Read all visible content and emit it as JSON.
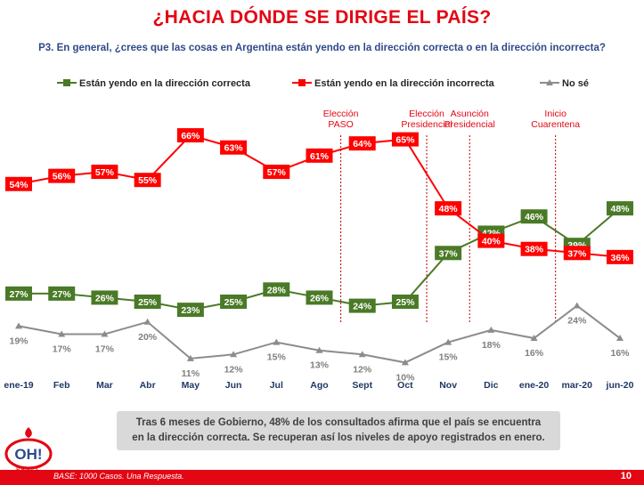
{
  "header": {
    "title": "¿HACIA DÓNDE SE DIRIGE EL PAÍS?",
    "question": "P3. En general, ¿crees que las cosas en Argentina están yendo en la dirección correcta o en la dirección incorrecta?"
  },
  "chart_data": {
    "type": "line",
    "categories": [
      "ene-19",
      "Feb",
      "Mar",
      "Abr",
      "May",
      "Jun",
      "Jul",
      "Ago",
      "Sept",
      "Oct",
      "Nov",
      "Dic",
      "ene-20",
      "mar-20",
      "jun-20"
    ],
    "series": [
      {
        "name": "Están yendo en la dirección correcta",
        "color": "#4a7a27",
        "marker": "square",
        "values": [
          27,
          27,
          26,
          25,
          23,
          25,
          28,
          26,
          24,
          25,
          37,
          42,
          46,
          39,
          48
        ]
      },
      {
        "name": "Están yendo en la dirección incorrecta",
        "color": "#ff0000",
        "marker": "square",
        "values": [
          54,
          56,
          57,
          55,
          66,
          63,
          57,
          61,
          64,
          65,
          48,
          40,
          38,
          37,
          36
        ]
      },
      {
        "name": "No sé",
        "color": "#8c8c8c",
        "marker": "triangle",
        "values": [
          19,
          17,
          17,
          20,
          11,
          12,
          15,
          13,
          12,
          10,
          15,
          18,
          16,
          24,
          16
        ]
      }
    ],
    "value_suffix": "%",
    "annotations": [
      {
        "lines": [
          "Elección",
          "PASO"
        ],
        "between": [
          "Ago",
          "Sept"
        ]
      },
      {
        "lines": [
          "Elección",
          "Presidencial"
        ],
        "between": [
          "Oct",
          "Nov"
        ]
      },
      {
        "lines": [
          "Asunción",
          "Presidencial"
        ],
        "between": [
          "Nov",
          "Dic"
        ]
      },
      {
        "lines": [
          "Inicio",
          "Cuarentena"
        ],
        "between": [
          "ene-20",
          "mar-20"
        ]
      }
    ],
    "legend_position": "top",
    "grid": false
  },
  "callout": {
    "line1": "Tras 6 meses de Gobierno, 48% de los consultados afirma que el país se encuentra",
    "line2": "en la dirección correcta. Se recuperan así los niveles de apoyo registrados en enero."
  },
  "footer": {
    "base": "BASE: 1000 Casos. Una Respuesta.",
    "page": "10"
  },
  "logo": {
    "text": "OH!",
    "subtext": "PANEL",
    "colors": {
      "primary": "#e30613",
      "secondary": "#2e4a8a"
    }
  }
}
